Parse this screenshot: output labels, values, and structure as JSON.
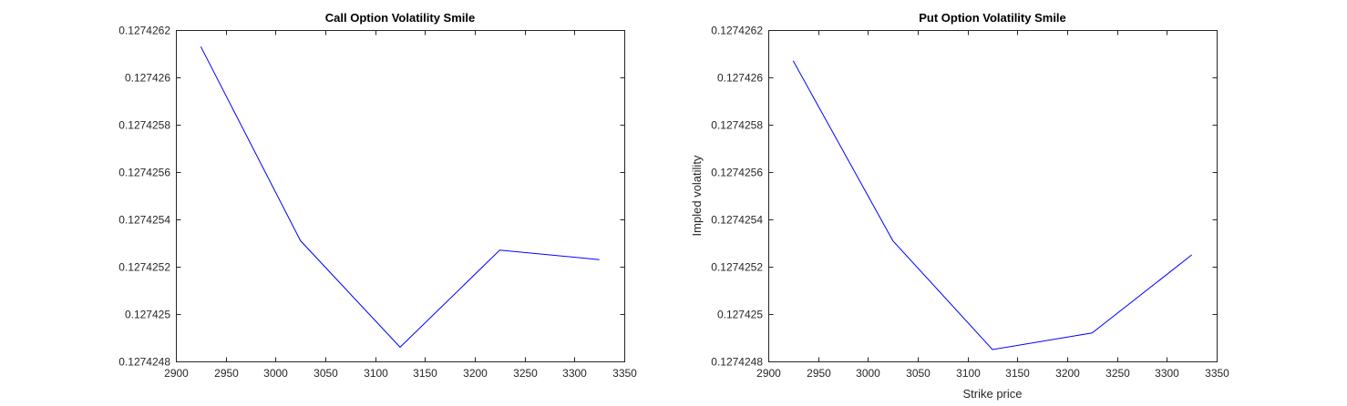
{
  "chart_data": [
    {
      "type": "line",
      "title": "Call Option Volatility Smile",
      "xlabel": "",
      "ylabel": "",
      "xlim": [
        2900,
        3350
      ],
      "ylim": [
        0.1274248,
        0.1274262
      ],
      "x_ticks": [
        2900,
        2950,
        3000,
        3050,
        3100,
        3150,
        3200,
        3250,
        3300,
        3350
      ],
      "y_ticks": [
        0.1274248,
        0.127425,
        0.1274252,
        0.1274254,
        0.1274256,
        0.1274258,
        0.127426,
        0.1274262
      ],
      "y_tick_labels": [
        "0.1274248",
        "0.127425",
        "0.1274252",
        "0.1274254",
        "0.1274256",
        "0.1274258",
        "0.127426",
        "0.1274262"
      ],
      "grid": false,
      "series": [
        {
          "color": "#0000ff",
          "x": [
            2925,
            3025,
            3125,
            3225,
            3325
          ],
          "y": [
            0.12742613,
            0.12742531,
            0.12742486,
            0.12742527,
            0.12742523
          ]
        }
      ]
    },
    {
      "type": "line",
      "title": "Put Option Volatility Smile",
      "xlabel": "Strike price",
      "ylabel": "Impled volatility",
      "xlim": [
        2900,
        3350
      ],
      "ylim": [
        0.1274248,
        0.1274262
      ],
      "x_ticks": [
        2900,
        2950,
        3000,
        3050,
        3100,
        3150,
        3200,
        3250,
        3300,
        3350
      ],
      "y_ticks": [
        0.1274248,
        0.127425,
        0.1274252,
        0.1274254,
        0.1274256,
        0.1274258,
        0.127426,
        0.1274262
      ],
      "y_tick_labels": [
        "0.1274248",
        "0.127425",
        "0.1274252",
        "0.1274254",
        "0.1274256",
        "0.1274258",
        "0.127426",
        "0.1274262"
      ],
      "grid": false,
      "series": [
        {
          "color": "#0000ff",
          "x": [
            2925,
            3025,
            3125,
            3225,
            3325
          ],
          "y": [
            0.12742607,
            0.12742531,
            0.12742485,
            0.12742492,
            0.12742525
          ]
        }
      ]
    }
  ]
}
